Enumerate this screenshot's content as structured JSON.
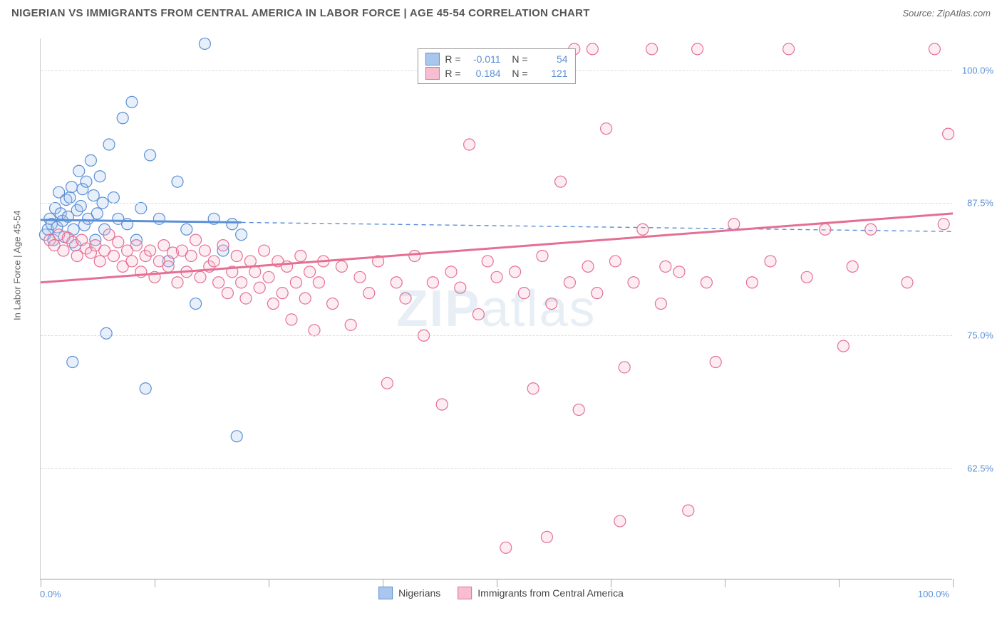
{
  "title": "NIGERIAN VS IMMIGRANTS FROM CENTRAL AMERICA IN LABOR FORCE | AGE 45-54 CORRELATION CHART",
  "source": "Source: ZipAtlas.com",
  "watermark_light": "ZIP",
  "watermark_rest": "atlas",
  "y_axis_title": "In Labor Force | Age 45-54",
  "x_min_label": "0.0%",
  "x_max_label": "100.0%",
  "chart": {
    "type": "scatter",
    "xlim": [
      0,
      100
    ],
    "ylim": [
      52,
      103
    ],
    "x_ticks": [
      0,
      12.5,
      25,
      37.5,
      50,
      62.5,
      75,
      87.5,
      100
    ],
    "y_ticks": [
      62.5,
      75.0,
      87.5,
      100.0
    ],
    "y_tick_labels": [
      "62.5%",
      "75.0%",
      "87.5%",
      "100.0%"
    ],
    "grid_color": "#dddddd",
    "background_color": "#ffffff",
    "marker_radius": 8,
    "marker_stroke_width": 1.2,
    "marker_fill_opacity": 0.28,
    "trend_solid_width": 3,
    "trend_dash_width": 1.4,
    "trend_dash_pattern": "6,5"
  },
  "series": [
    {
      "key": "nigerians",
      "label": "Nigerians",
      "color_stroke": "#5b8fd6",
      "color_fill": "#a9c7ec",
      "R": "-0.011",
      "N": "54",
      "trend": {
        "x1": 0,
        "y1": 85.9,
        "x2": 100,
        "y2": 84.8,
        "solid_until_x": 22
      },
      "points": [
        [
          0.5,
          84.5
        ],
        [
          0.8,
          85.0
        ],
        [
          1.0,
          86.0
        ],
        [
          1.2,
          85.5
        ],
        [
          1.4,
          84.0
        ],
        [
          1.6,
          87.0
        ],
        [
          1.8,
          85.2
        ],
        [
          2.0,
          88.5
        ],
        [
          2.2,
          86.5
        ],
        [
          2.4,
          85.8
        ],
        [
          2.6,
          84.3
        ],
        [
          2.8,
          87.8
        ],
        [
          3.0,
          86.2
        ],
        [
          3.2,
          88.0
        ],
        [
          3.4,
          89.0
        ],
        [
          3.6,
          85.0
        ],
        [
          3.8,
          83.5
        ],
        [
          4.0,
          86.8
        ],
        [
          4.2,
          90.5
        ],
        [
          4.4,
          87.2
        ],
        [
          4.6,
          88.8
        ],
        [
          4.8,
          85.4
        ],
        [
          5.0,
          89.5
        ],
        [
          5.2,
          86.0
        ],
        [
          5.5,
          91.5
        ],
        [
          5.8,
          88.2
        ],
        [
          6.0,
          84.0
        ],
        [
          6.2,
          86.5
        ],
        [
          6.5,
          90.0
        ],
        [
          6.8,
          87.5
        ],
        [
          7.0,
          85.0
        ],
        [
          7.5,
          93.0
        ],
        [
          8.0,
          88.0
        ],
        [
          8.5,
          86.0
        ],
        [
          9.0,
          95.5
        ],
        [
          9.5,
          85.5
        ],
        [
          10.0,
          97.0
        ],
        [
          10.5,
          84.0
        ],
        [
          11.0,
          87.0
        ],
        [
          12.0,
          92.0
        ],
        [
          13.0,
          86.0
        ],
        [
          14.0,
          82.0
        ],
        [
          15.0,
          89.5
        ],
        [
          16.0,
          85.0
        ],
        [
          17.0,
          78.0
        ],
        [
          18.0,
          102.5
        ],
        [
          19.0,
          86.0
        ],
        [
          20.0,
          83.0
        ],
        [
          3.5,
          72.5
        ],
        [
          7.2,
          75.2
        ],
        [
          11.5,
          70.0
        ],
        [
          21.5,
          65.5
        ],
        [
          21.0,
          85.5
        ],
        [
          22.0,
          84.5
        ]
      ]
    },
    {
      "key": "central_america",
      "label": "Immigrants from Central America",
      "color_stroke": "#e56f93",
      "color_fill": "#f7bdd0",
      "R": "0.184",
      "N": "121",
      "trend": {
        "x1": 0,
        "y1": 80.0,
        "x2": 100,
        "y2": 86.5,
        "solid_until_x": 100
      },
      "points": [
        [
          1.0,
          84.0
        ],
        [
          1.5,
          83.5
        ],
        [
          2.0,
          84.5
        ],
        [
          2.5,
          83.0
        ],
        [
          3.0,
          84.2
        ],
        [
          3.5,
          83.8
        ],
        [
          4.0,
          82.5
        ],
        [
          4.5,
          84.0
        ],
        [
          5.0,
          83.2
        ],
        [
          5.5,
          82.8
        ],
        [
          6.0,
          83.5
        ],
        [
          6.5,
          82.0
        ],
        [
          7.0,
          83.0
        ],
        [
          7.5,
          84.5
        ],
        [
          8.0,
          82.5
        ],
        [
          8.5,
          83.8
        ],
        [
          9.0,
          81.5
        ],
        [
          9.5,
          83.0
        ],
        [
          10.0,
          82.0
        ],
        [
          10.5,
          83.5
        ],
        [
          11.0,
          81.0
        ],
        [
          11.5,
          82.5
        ],
        [
          12.0,
          83.0
        ],
        [
          12.5,
          80.5
        ],
        [
          13.0,
          82.0
        ],
        [
          13.5,
          83.5
        ],
        [
          14.0,
          81.5
        ],
        [
          14.5,
          82.8
        ],
        [
          15.0,
          80.0
        ],
        [
          15.5,
          83.0
        ],
        [
          16.0,
          81.0
        ],
        [
          16.5,
          82.5
        ],
        [
          17.0,
          84.0
        ],
        [
          17.5,
          80.5
        ],
        [
          18.0,
          83.0
        ],
        [
          18.5,
          81.5
        ],
        [
          19.0,
          82.0
        ],
        [
          19.5,
          80.0
        ],
        [
          20.0,
          83.5
        ],
        [
          20.5,
          79.0
        ],
        [
          21.0,
          81.0
        ],
        [
          21.5,
          82.5
        ],
        [
          22.0,
          80.0
        ],
        [
          22.5,
          78.5
        ],
        [
          23.0,
          82.0
        ],
        [
          23.5,
          81.0
        ],
        [
          24.0,
          79.5
        ],
        [
          24.5,
          83.0
        ],
        [
          25.0,
          80.5
        ],
        [
          25.5,
          78.0
        ],
        [
          26.0,
          82.0
        ],
        [
          26.5,
          79.0
        ],
        [
          27.0,
          81.5
        ],
        [
          27.5,
          76.5
        ],
        [
          28.0,
          80.0
        ],
        [
          28.5,
          82.5
        ],
        [
          29.0,
          78.5
        ],
        [
          29.5,
          81.0
        ],
        [
          30.0,
          75.5
        ],
        [
          30.5,
          80.0
        ],
        [
          31.0,
          82.0
        ],
        [
          32.0,
          78.0
        ],
        [
          33.0,
          81.5
        ],
        [
          34.0,
          76.0
        ],
        [
          35.0,
          80.5
        ],
        [
          36.0,
          79.0
        ],
        [
          37.0,
          82.0
        ],
        [
          38.0,
          70.5
        ],
        [
          39.0,
          80.0
        ],
        [
          40.0,
          78.5
        ],
        [
          41.0,
          82.5
        ],
        [
          42.0,
          75.0
        ],
        [
          43.0,
          80.0
        ],
        [
          44.0,
          68.5
        ],
        [
          45.0,
          81.0
        ],
        [
          46.0,
          79.5
        ],
        [
          47.0,
          93.0
        ],
        [
          48.0,
          77.0
        ],
        [
          49.0,
          82.0
        ],
        [
          50.0,
          80.5
        ],
        [
          51.0,
          55.0
        ],
        [
          52.0,
          81.0
        ],
        [
          53.0,
          79.0
        ],
        [
          54.0,
          70.0
        ],
        [
          55.0,
          82.5
        ],
        [
          55.5,
          56.0
        ],
        [
          56.0,
          78.0
        ],
        [
          57.0,
          89.5
        ],
        [
          58.0,
          80.0
        ],
        [
          59.0,
          68.0
        ],
        [
          60.0,
          81.5
        ],
        [
          60.5,
          102.0
        ],
        [
          61.0,
          79.0
        ],
        [
          62.0,
          94.5
        ],
        [
          63.0,
          82.0
        ],
        [
          64.0,
          72.0
        ],
        [
          65.0,
          80.0
        ],
        [
          66.0,
          85.0
        ],
        [
          67.0,
          102.0
        ],
        [
          68.0,
          78.0
        ],
        [
          70.0,
          81.0
        ],
        [
          71.0,
          58.5
        ],
        [
          72.0,
          102.0
        ],
        [
          73.0,
          80.0
        ],
        [
          74.0,
          72.5
        ],
        [
          76.0,
          85.5
        ],
        [
          78.0,
          80.0
        ],
        [
          80.0,
          82.0
        ],
        [
          82.0,
          102.0
        ],
        [
          84.0,
          80.5
        ],
        [
          86.0,
          85.0
        ],
        [
          88.0,
          74.0
        ],
        [
          89.0,
          81.5
        ],
        [
          91.0,
          85.0
        ],
        [
          95.0,
          80.0
        ],
        [
          98.0,
          102.0
        ],
        [
          99.0,
          85.5
        ],
        [
          99.5,
          94.0
        ],
        [
          58.5,
          102.0
        ],
        [
          63.5,
          57.5
        ],
        [
          68.5,
          81.5
        ]
      ]
    }
  ]
}
